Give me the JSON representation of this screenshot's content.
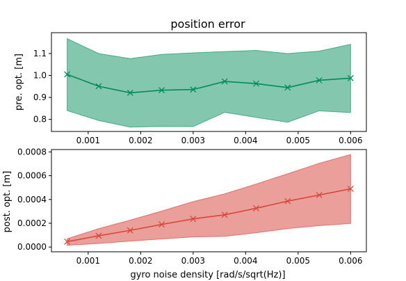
{
  "figure": {
    "title": "position error",
    "xlabel": "gyro noise density [rad/s/sqrt(Hz)]"
  },
  "chart_data": [
    {
      "type": "line",
      "title": "position error",
      "xlabel": "",
      "ylabel": "pre. opt. [m]",
      "xlim": [
        0.0003,
        0.0063
      ],
      "ylim": [
        0.745,
        1.195
      ],
      "xticks": [
        0.001,
        0.002,
        0.003,
        0.004,
        0.005,
        0.006
      ],
      "xtick_labels": [
        "0.001",
        "0.002",
        "0.003",
        "0.004",
        "0.005",
        "0.006"
      ],
      "yticks": [
        0.8,
        0.9,
        1.0,
        1.1
      ],
      "ytick_labels": [
        "0.8",
        "0.9",
        "1.0",
        "1.1"
      ],
      "show_xtick_labels": true,
      "color": "#008a5e",
      "band_color": "#2a9f73",
      "marker": "x",
      "x": [
        0.0006,
        0.0012,
        0.0018,
        0.0024,
        0.003,
        0.0036,
        0.0042,
        0.0048,
        0.0054,
        0.006
      ],
      "series": [
        {
          "values": [
            1.005,
            0.951,
            0.921,
            0.933,
            0.936,
            0.973,
            0.963,
            0.945,
            0.978,
            0.988
          ]
        }
      ],
      "band_upper": [
        1.168,
        1.1,
        1.077,
        1.096,
        1.103,
        1.109,
        1.114,
        1.1,
        1.111,
        1.142
      ],
      "band_lower": [
        0.84,
        0.795,
        0.765,
        0.768,
        0.767,
        0.832,
        0.809,
        0.787,
        0.839,
        0.831
      ]
    },
    {
      "type": "line",
      "title": "",
      "xlabel": "gyro noise density [rad/s/sqrt(Hz)]",
      "ylabel": "post. opt. [m]",
      "xlim": [
        0.0003,
        0.0063
      ],
      "ylim": [
        -4e-05,
        0.00082
      ],
      "xticks": [
        0.001,
        0.002,
        0.003,
        0.004,
        0.005,
        0.006
      ],
      "xtick_labels": [
        "0.001",
        "0.002",
        "0.003",
        "0.004",
        "0.005",
        "0.006"
      ],
      "yticks": [
        0.0,
        0.0002,
        0.0004,
        0.0006,
        0.0008
      ],
      "ytick_labels": [
        "0.0000",
        "0.0002",
        "0.0004",
        "0.0006",
        "0.0008"
      ],
      "show_xtick_labels": true,
      "color": "#d8463d",
      "band_color": "#dc5a52",
      "marker": "x",
      "x": [
        0.0006,
        0.0012,
        0.0018,
        0.0024,
        0.003,
        0.0036,
        0.0042,
        0.0048,
        0.0054,
        0.006
      ],
      "series": [
        {
          "values": [
            4.5e-05,
            9.5e-05,
            0.00014,
            0.00019,
            0.000237,
            0.000271,
            0.000326,
            0.000386,
            0.000437,
            0.00049
          ]
        }
      ],
      "band_upper": [
        7e-05,
        0.000155,
        0.000226,
        0.000302,
        0.000382,
        0.000447,
        0.00053,
        0.000616,
        0.000704,
        0.000778
      ],
      "band_lower": [
        1.5e-05,
        3e-05,
        5e-05,
        6.8e-05,
        8.5e-05,
        9e-05,
        0.00012,
        0.000155,
        0.00018,
        0.000198
      ]
    }
  ]
}
